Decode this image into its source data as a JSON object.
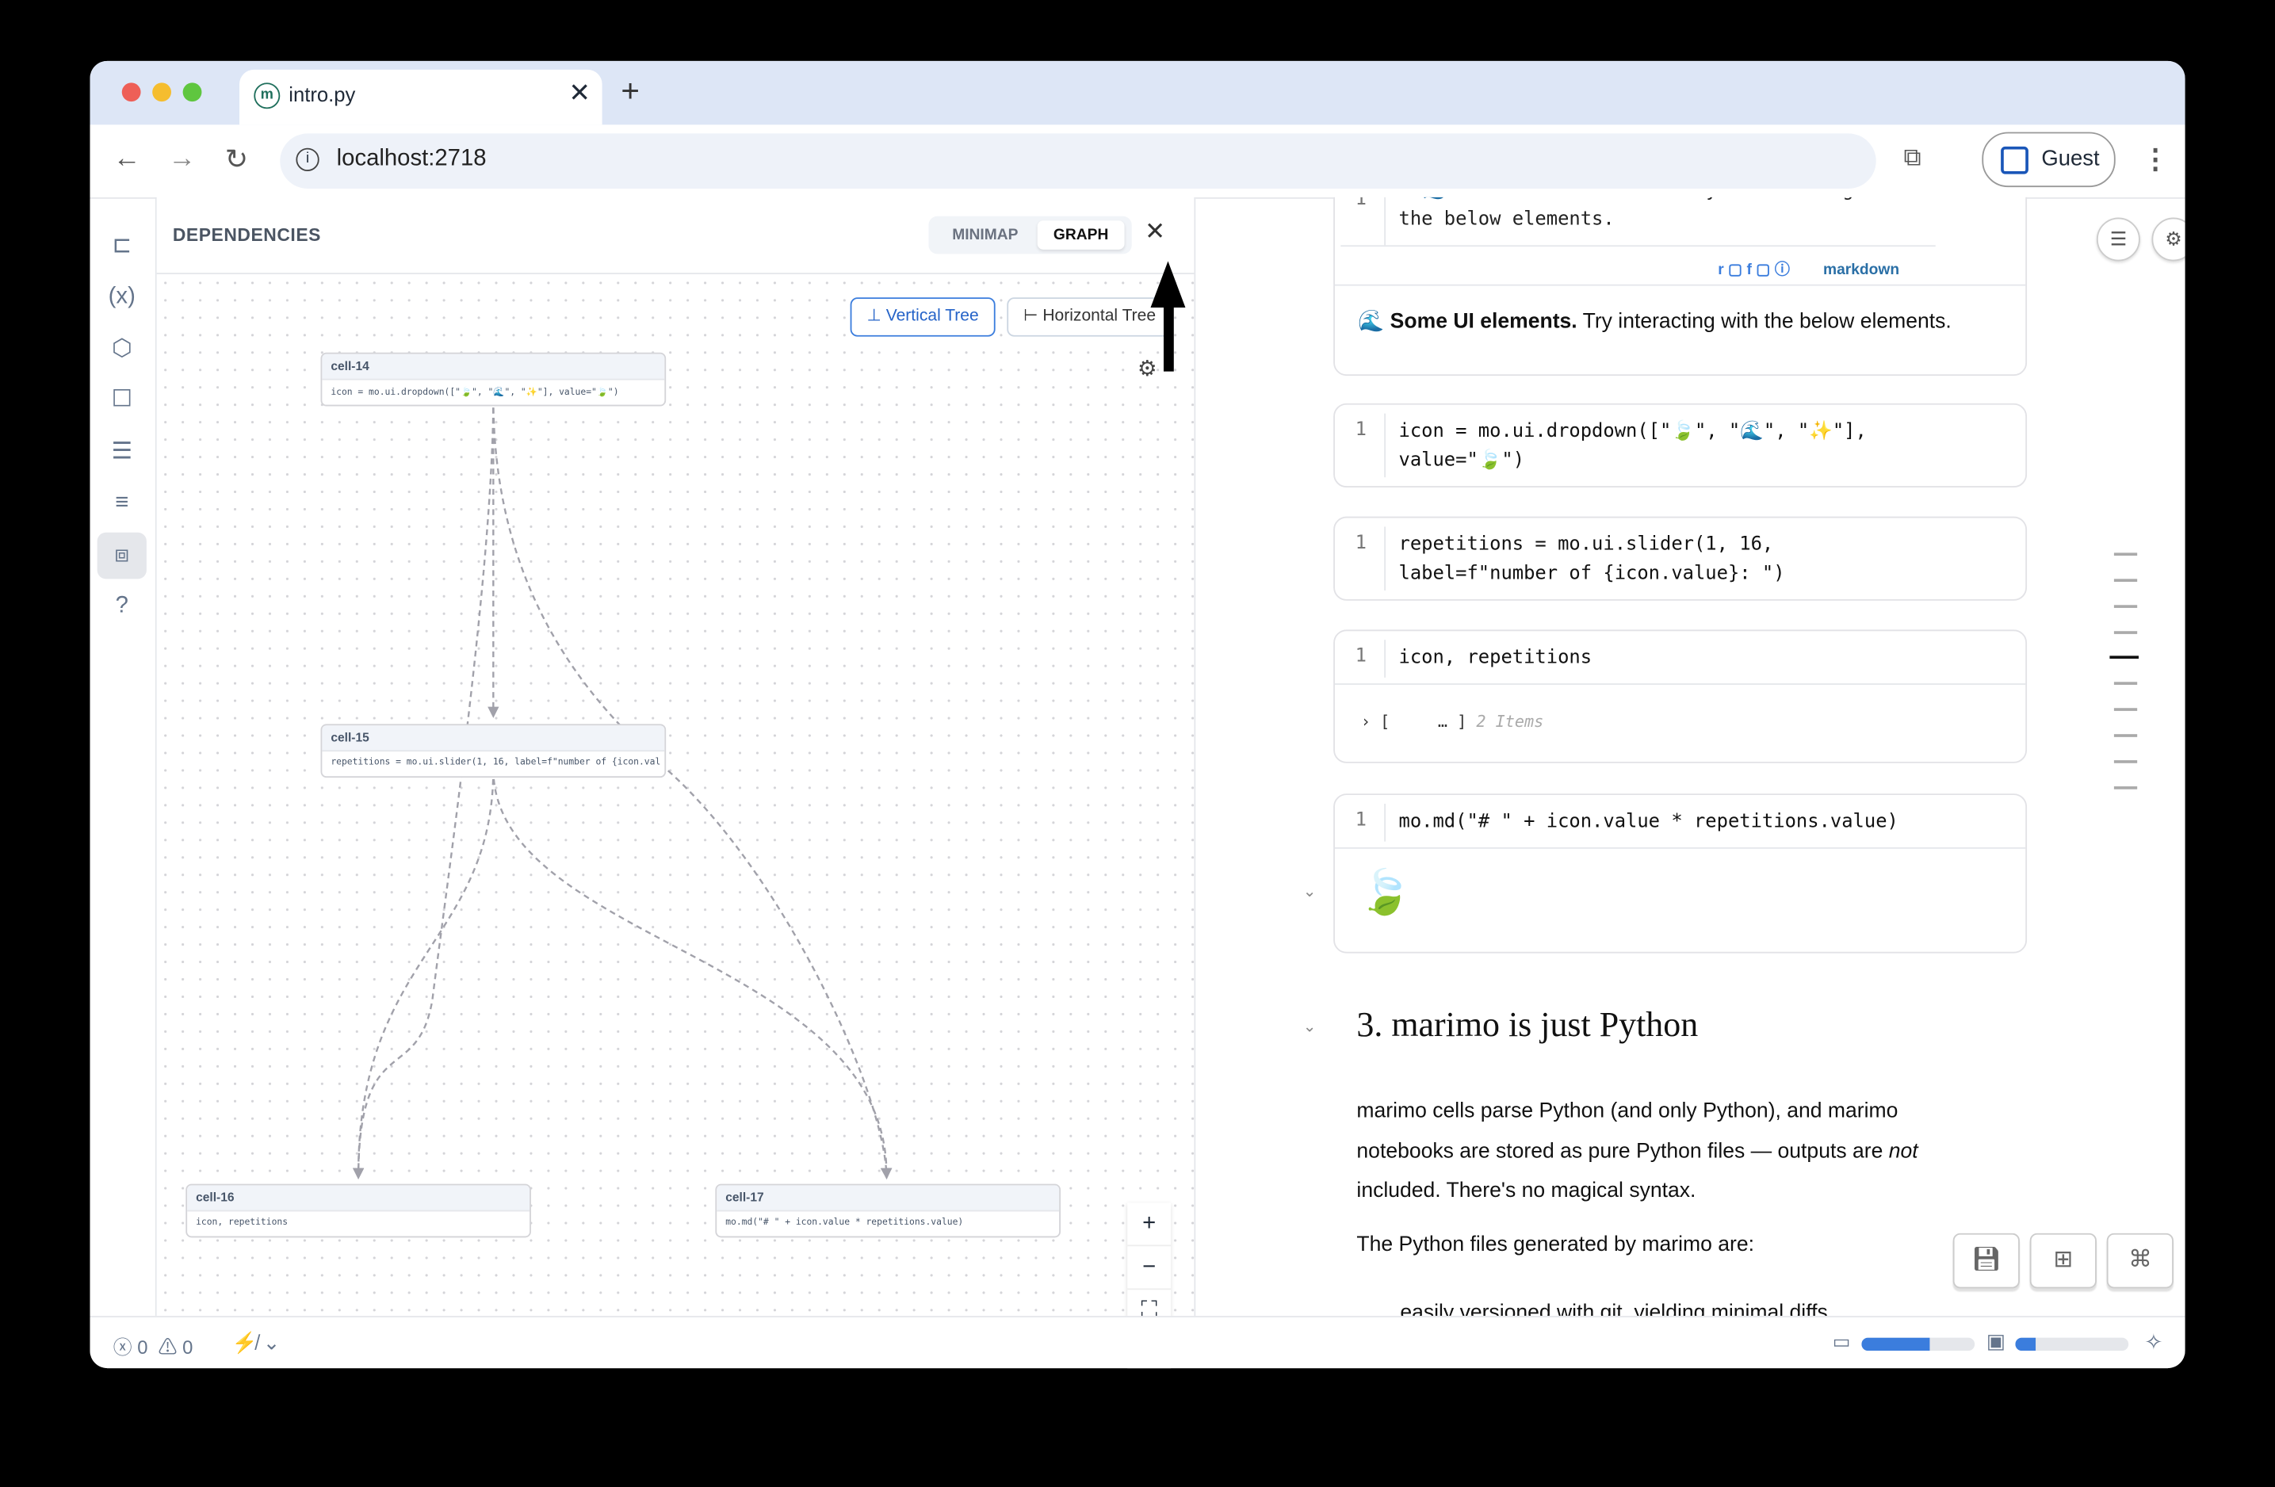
{
  "browser": {
    "tab_title": "intro.py",
    "favicon": "m",
    "url": "localhost:2718",
    "profile_label": "Guest"
  },
  "dependencies": {
    "title": "DEPENDENCIES",
    "view_tabs": [
      {
        "label": "MINIMAP",
        "active": false
      },
      {
        "label": "GRAPH",
        "active": true
      }
    ],
    "layout_buttons": [
      {
        "label": "Vertical Tree",
        "active": true
      },
      {
        "label": "Horizontal Tree",
        "active": false
      }
    ],
    "nodes": [
      {
        "name": "cell-14",
        "code": "icon = mo.ui.dropdown([\"🍃\", \"🌊\", \"✨\"], value=\"🍃\")"
      },
      {
        "name": "cell-15",
        "code": "repetitions = mo.ui.slider(1, 16, label=f\"number of {icon.val"
      },
      {
        "name": "cell-16",
        "code": "icon, repetitions"
      },
      {
        "name": "cell-17",
        "code": "mo.md(\"# \" + icon.value * repetitions.value)"
      }
    ],
    "edges": [
      [
        "cell-14",
        "cell-15"
      ],
      [
        "cell-14",
        "cell-16"
      ],
      [
        "cell-14",
        "cell-17"
      ],
      [
        "cell-15",
        "cell-16"
      ],
      [
        "cell-15",
        "cell-17"
      ]
    ]
  },
  "notebook": {
    "md_cell": {
      "code_partial": "**🌊 Some UI elements.** Try interacting with",
      "code_line2": "the below elements.",
      "toolbar": {
        "r": "r",
        "f": "f",
        "type": "markdown"
      },
      "rendered_bold": "🌊 Some UI elements.",
      "rendered_rest": " Try interacting with the below elements."
    },
    "cells": [
      {
        "line_no": "1",
        "lines": [
          "icon = mo.ui.dropdown([\"🍃\", \"🌊\", \"✨\"],",
          "value=\"🍃\")"
        ]
      },
      {
        "line_no": "1",
        "lines": [
          "repetitions = mo.ui.slider(1, 16,",
          "label=f\"number of {icon.value}: \")"
        ]
      },
      {
        "line_no": "1",
        "lines": [
          "icon, repetitions"
        ],
        "output_prefix": "› [",
        "output_ellipsis": "… ]",
        "output_count": "2 Items"
      },
      {
        "line_no": "1",
        "lines": [
          "mo.md(\"# \" + icon.value * repetitions.value)"
        ],
        "output": "🍃"
      }
    ],
    "section_heading": "3. marimo is just Python",
    "para1_a": "marimo cells parse Python (and only Python), and marimo notebooks are stored as pure Python files — outputs are ",
    "para1_em": "not",
    "para1_b": " included. There's no magical syntax.",
    "para2": "The Python files generated by marimo are:",
    "para3_partial": "easily versioned with git, yielding minimal diffs"
  },
  "footer": {
    "errors": "0",
    "warnings": "0",
    "memory_usage_percent": 60,
    "cpu_usage_percent": 18
  },
  "colors": {
    "accent": "#3b7ddd",
    "tabbar": "#dde6f6",
    "close_red": "#e25555"
  }
}
